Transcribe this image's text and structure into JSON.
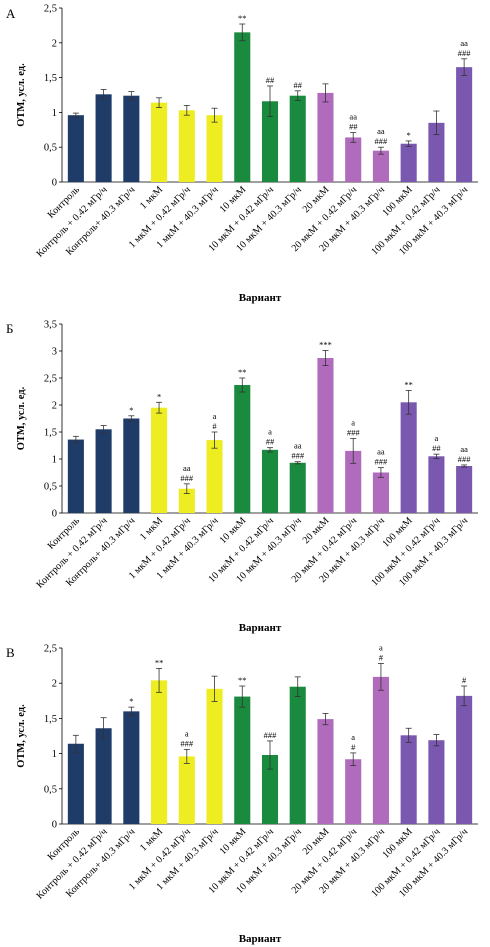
{
  "colors": {
    "navy": "#1f3b68",
    "yellow": "#eded22",
    "green": "#1a8a3e",
    "pink": "#b06bbd",
    "purple": "#7a58b0"
  },
  "chart_data": [
    {
      "type": "bar",
      "panel": "А",
      "xlabel": "Вариант",
      "ylabel": "ОТМ, усл. ед.",
      "ylim": [
        0,
        2.5
      ],
      "yticks": [
        "0",
        "0,5",
        "1",
        "1,5",
        "2",
        "2,5"
      ],
      "categories": [
        "Контроль",
        "Контроль + 0.42 мГр/ч",
        "Контроль+ 40.3 мГр/ч",
        "1 мкМ",
        "1 мкМ + 0.42 мГр/ч",
        "1 мкМ + 40.3 мГр/ч",
        "10 мкМ",
        "10 мкМ + 0.42 мГр/ч",
        "10 мкМ + 40.3 мГр/ч",
        "20 мкМ",
        "20 мкМ + 0.42 мГр/ч",
        "20 мкМ + 40.3 мГр/ч",
        "100 мкМ",
        "100 мкМ + 0.42 мГр/ч",
        "100 мкМ + 40.3 мГр/ч"
      ],
      "values": [
        0.96,
        1.26,
        1.24,
        1.14,
        1.03,
        0.96,
        2.15,
        1.16,
        1.24,
        1.28,
        0.64,
        0.45,
        0.55,
        0.85,
        1.65
      ],
      "errors": [
        0.03,
        0.07,
        0.06,
        0.07,
        0.07,
        0.1,
        0.12,
        0.22,
        0.07,
        0.13,
        0.07,
        0.05,
        0.04,
        0.17,
        0.12
      ],
      "colors": [
        "navy",
        "navy",
        "navy",
        "yellow",
        "yellow",
        "yellow",
        "green",
        "green",
        "green",
        "pink",
        "pink",
        "pink",
        "purple",
        "purple",
        "purple"
      ],
      "annotations": [
        [],
        [],
        [],
        [],
        [],
        [],
        [
          "**"
        ],
        [
          "##"
        ],
        [
          "##"
        ],
        [],
        [
          "aa",
          "##"
        ],
        [
          "aa",
          "###"
        ],
        [
          "*"
        ],
        [],
        [
          "aa",
          "###"
        ]
      ]
    },
    {
      "type": "bar",
      "panel": "Б",
      "xlabel": "Вариант",
      "ylabel": "ОТМ, усл. ед.",
      "ylim": [
        0,
        3.5
      ],
      "yticks": [
        "0",
        "0,5",
        "1",
        "1,5",
        "2",
        "2,5",
        "3",
        "3,5"
      ],
      "categories": [
        "Контроль",
        "Контроль + 0.42 мГр/ч",
        "Контроль+ 40.3 мГр/ч",
        "1 мкМ",
        "1 мкМ + 0.42 мГр/ч",
        "1 мкМ + 40.3 мГр/ч",
        "10 мкМ",
        "10 мкМ + 0.42 мГр/ч",
        "10 мкМ + 40.3 мГр/ч",
        "20 мкМ",
        "20 мкМ + 0.42 мГр/ч",
        "20 мкМ + 40.3 мГр/ч",
        "100 мкМ",
        "100 мкМ + 0.42 мГр/ч",
        "100 мкМ + 40.3 мГр/ч"
      ],
      "values": [
        1.36,
        1.55,
        1.75,
        1.95,
        0.45,
        1.35,
        2.37,
        1.17,
        0.93,
        2.87,
        1.15,
        0.75,
        2.05,
        1.05,
        0.87
      ],
      "errors": [
        0.06,
        0.07,
        0.05,
        0.1,
        0.09,
        0.15,
        0.13,
        0.04,
        0.02,
        0.14,
        0.23,
        0.09,
        0.22,
        0.04,
        0.02
      ],
      "colors": [
        "navy",
        "navy",
        "navy",
        "yellow",
        "yellow",
        "yellow",
        "green",
        "green",
        "green",
        "pink",
        "pink",
        "pink",
        "purple",
        "purple",
        "purple"
      ],
      "annotations": [
        [],
        [],
        [
          "*"
        ],
        [
          "*"
        ],
        [
          "aa",
          "###"
        ],
        [
          "a",
          "#"
        ],
        [
          "**"
        ],
        [
          "a",
          "##"
        ],
        [
          "aa",
          "###"
        ],
        [
          "***"
        ],
        [
          "a",
          "###"
        ],
        [
          "aa",
          "###"
        ],
        [
          "**"
        ],
        [
          "a",
          "##"
        ],
        [
          "aa",
          "###"
        ]
      ]
    },
    {
      "type": "bar",
      "panel": "В",
      "xlabel": "Вариант",
      "ylabel": "ОТМ, усл. ед.",
      "ylim": [
        0,
        2.5
      ],
      "yticks": [
        "0",
        "0,5",
        "1",
        "1,5",
        "2",
        "2,5"
      ],
      "categories": [
        "Контроль",
        "Контроль + 0.42 мГр/ч",
        "Контроль+ 40.3 мГр/ч",
        "1 мкМ",
        "1 мкМ + 0.42 мГр/ч",
        "1 мкМ + 40.3 мГр/ч",
        "10 мкМ",
        "10 мкМ + 0.42 мГр/ч",
        "10 мкМ + 40.3 мГр/ч",
        "20 мкМ",
        "20 мкМ + 0.42 мГр/ч",
        "20 мкМ + 40.3 мГр/ч",
        "100 мкМ",
        "100 мкМ + 0.42 мГр/ч",
        "100 мкМ + 40.3 мГр/ч"
      ],
      "values": [
        1.14,
        1.36,
        1.6,
        2.04,
        0.96,
        1.92,
        1.81,
        0.98,
        1.95,
        1.49,
        0.92,
        2.09,
        1.26,
        1.19,
        1.82
      ],
      "errors": [
        0.12,
        0.15,
        0.06,
        0.17,
        0.1,
        0.18,
        0.15,
        0.2,
        0.14,
        0.08,
        0.09,
        0.19,
        0.1,
        0.08,
        0.14
      ],
      "colors": [
        "navy",
        "navy",
        "navy",
        "yellow",
        "yellow",
        "yellow",
        "green",
        "green",
        "green",
        "pink",
        "pink",
        "pink",
        "purple",
        "purple",
        "purple"
      ],
      "annotations": [
        [],
        [],
        [
          "*"
        ],
        [
          "**"
        ],
        [
          "a",
          "###"
        ],
        [],
        [
          "**"
        ],
        [
          "###"
        ],
        [],
        [],
        [
          "a",
          "#"
        ],
        [
          "a",
          "#"
        ],
        [],
        [],
        [
          "#"
        ]
      ]
    }
  ]
}
